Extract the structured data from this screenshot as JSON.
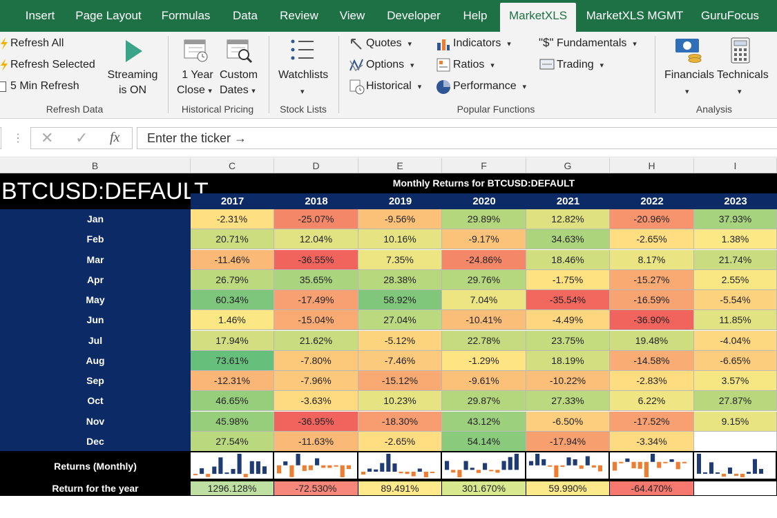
{
  "ribbon_tabs": [
    "Insert",
    "Page Layout",
    "Formulas",
    "Data",
    "Review",
    "View",
    "Developer",
    "Help",
    "MarketXLS",
    "MarketXLS MGMT",
    "GuruFocus"
  ],
  "active_tab": "MarketXLS",
  "ribbon": {
    "refresh_all": "Refresh All",
    "refresh_selected": "Refresh Selected",
    "five_min_refresh": "5 Min Refresh",
    "streaming": "Streaming",
    "streaming_state": "is ON",
    "group_refresh": "Refresh Data",
    "one_year": "1 Year",
    "close": "Close",
    "custom": "Custom",
    "dates": "Dates",
    "group_historical": "Historical Pricing",
    "watchlists": "Watchlists",
    "group_stock_lists": "Stock Lists",
    "quotes": "Quotes",
    "options": "Options",
    "historical": "Historical",
    "indicators": "Indicators",
    "ratios": "Ratios",
    "performance": "Performance",
    "fundamentals": "Fundamentals",
    "trading": "Trading",
    "group_popular": "Popular Functions",
    "financials": "Financials",
    "technicals": "Technicals",
    "group_analysis": "Analysis"
  },
  "formula_bar": {
    "fx_symbol": "fx",
    "content": "Enter the ticker →"
  },
  "column_headers": [
    "B",
    "C",
    "D",
    "E",
    "F",
    "G",
    "H",
    "I"
  ],
  "sheet": {
    "ticker": "BTCUSD:DEFAULT",
    "title": "Monthly Returns for  BTCUSD:DEFAULT",
    "years": [
      "2017",
      "2018",
      "2019",
      "2020",
      "2021",
      "2022",
      "2023"
    ],
    "months": [
      "Jan",
      "Feb",
      "Mar",
      "Apr",
      "May",
      "Jun",
      "Jul",
      "Aug",
      "Sep",
      "Oct",
      "Nov",
      "Dec"
    ],
    "returns": [
      [
        "-2.31%",
        "-25.07%",
        "-9.56%",
        "29.89%",
        "12.82%",
        "-20.96%",
        "37.93%"
      ],
      [
        "20.71%",
        "12.04%",
        "10.16%",
        "-9.17%",
        "34.63%",
        "-2.65%",
        "1.38%"
      ],
      [
        "-11.46%",
        "-36.55%",
        "7.35%",
        "-24.86%",
        "18.46%",
        "8.17%",
        "21.74%"
      ],
      [
        "26.79%",
        "35.65%",
        "28.38%",
        "29.76%",
        "-1.75%",
        "-15.27%",
        "2.55%"
      ],
      [
        "60.34%",
        "-17.49%",
        "58.92%",
        "7.04%",
        "-35.54%",
        "-16.59%",
        "-5.54%"
      ],
      [
        "1.46%",
        "-15.04%",
        "27.04%",
        "-10.41%",
        "-4.49%",
        "-36.90%",
        "11.85%"
      ],
      [
        "17.94%",
        "21.62%",
        "-5.12%",
        "22.78%",
        "23.75%",
        "19.48%",
        "-4.04%"
      ],
      [
        "73.61%",
        "-7.80%",
        "-7.46%",
        "-1.29%",
        "18.19%",
        "-14.58%",
        "-6.65%"
      ],
      [
        "-12.31%",
        "-7.96%",
        "-15.12%",
        "-9.61%",
        "-10.22%",
        "-2.83%",
        "3.57%"
      ],
      [
        "46.65%",
        "-3.63%",
        "10.23%",
        "29.87%",
        "27.33%",
        "6.22%",
        "27.87%"
      ],
      [
        "45.98%",
        "-36.95%",
        "-18.30%",
        "43.12%",
        "-6.50%",
        "-17.52%",
        "9.15%"
      ],
      [
        "27.54%",
        "-11.63%",
        "-2.65%",
        "54.14%",
        "-17.94%",
        "-3.34%",
        ""
      ]
    ],
    "returns_monthly_label": "Returns (Monthly)",
    "return_for_year_label": "Return for the year",
    "yearly_returns": [
      "1296.128%",
      "-72.530%",
      "89.491%",
      "301.670%",
      "59.990%",
      "-64.470%",
      ""
    ],
    "yearly_colors": [
      "#bfe0a3",
      "#f6877a",
      "#ffe98a",
      "#d8e88e",
      "#fbe98c",
      "#f6786e",
      "#ffffff"
    ]
  },
  "colors": {
    "ribbon_green": "#1e7145",
    "navy": "#0b2a66",
    "spark_positive": "#1f3b73",
    "spark_negative": "#ed7d31"
  }
}
